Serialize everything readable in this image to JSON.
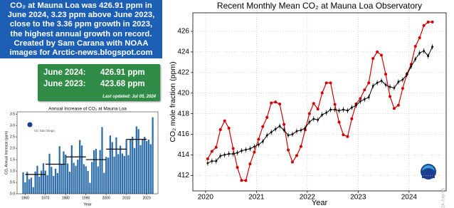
{
  "intro": {
    "lines": [
      "CO₂ at Mauna Loa was 426.91 ppm in",
      "June 2024, 3.23 ppm above June 2023,",
      "close to the 3.36 ppm growth in 2023,",
      "the highest annual growth on record.",
      "Created by Sam Carana with NOAA",
      "images for Arctic-news.blogspot.com"
    ]
  },
  "summary": {
    "rows": [
      {
        "label": "June 2024:",
        "value": "426.91 ppm"
      },
      {
        "label": "June 2023:",
        "value": "423.68 ppm"
      }
    ],
    "updated": "Last updated: Jul 05, 2024"
  },
  "chart_data": [
    {
      "type": "bar",
      "title": "Annual Increase of CO₂ at Mauna Loa",
      "x_label": "Year",
      "y_label": "CO₂ Annual Increase (ppm)",
      "credit": "UC San Diego",
      "color": "#2f6ea8",
      "x": [
        1959,
        1960,
        1961,
        1962,
        1963,
        1964,
        1965,
        1966,
        1967,
        1968,
        1969,
        1970,
        1971,
        1972,
        1973,
        1974,
        1975,
        1976,
        1977,
        1978,
        1979,
        1980,
        1981,
        1982,
        1983,
        1984,
        1985,
        1986,
        1987,
        1988,
        1989,
        1990,
        1991,
        1992,
        1993,
        1994,
        1995,
        1996,
        1997,
        1998,
        1999,
        2000,
        2001,
        2002,
        2003,
        2004,
        2005,
        2006,
        2007,
        2008,
        2009,
        2010,
        2011,
        2012,
        2013,
        2014,
        2015,
        2016,
        2017,
        2018,
        2019,
        2020,
        2021,
        2022,
        2023
      ],
      "values": [
        0.94,
        0.5,
        0.96,
        0.64,
        0.71,
        0.29,
        0.98,
        1.23,
        0.75,
        1.02,
        1.34,
        1.02,
        0.82,
        1.76,
        1.18,
        0.78,
        1.1,
        0.91,
        2.09,
        1.3,
        1.86,
        1.72,
        1.33,
        0.97,
        2.13,
        1.36,
        1.23,
        1.5,
        2.36,
        2.12,
        1.3,
        1.21,
        1.0,
        0.48,
        1.4,
        1.91,
        1.97,
        1.2,
        1.92,
        2.93,
        0.92,
        1.62,
        1.59,
        2.56,
        2.27,
        1.63,
        2.48,
        1.74,
        2.11,
        1.77,
        1.66,
        2.39,
        1.7,
        2.4,
        2.51,
        2.01,
        2.96,
        2.84,
        2.14,
        2.39,
        2.5,
        2.31,
        2.38,
        2.18,
        3.36
      ],
      "decade_means": {
        "starts": [
          1960,
          1970,
          1980,
          1990,
          2000,
          2010
        ],
        "ends": [
          1970,
          1980,
          1990,
          2000,
          2010,
          2020
        ],
        "values": [
          0.85,
          1.3,
          1.62,
          1.5,
          1.96,
          2.39
        ]
      },
      "xlim": [
        1956,
        2025.6
      ],
      "ylim": [
        0,
        3.6
      ],
      "xticks": [
        1960,
        1970,
        1980,
        1990,
        2000,
        2010,
        2020
      ],
      "yticks": [
        {
          "value": 0,
          "label": "0.0"
        },
        {
          "value": 0.5,
          "label": "0.5"
        },
        {
          "value": 1,
          "label": "1.0"
        },
        {
          "value": 1.5,
          "label": "1.5"
        },
        {
          "value": 2,
          "label": "2.0"
        },
        {
          "value": 2.5,
          "label": "2.5"
        },
        {
          "value": 3,
          "label": "3.0"
        },
        {
          "value": 3.5,
          "label": "3.5"
        }
      ]
    },
    {
      "type": "line",
      "title": "Recent Monthly Mean CO₂ at Mauna Loa Observatory",
      "x_label": "Year",
      "y_label": "CO₂ mole fraction (ppm)",
      "annotation": "2024-July-05",
      "grid": true,
      "x": [
        2020.042,
        2020.125,
        2020.208,
        2020.292,
        2020.375,
        2020.458,
        2020.542,
        2020.625,
        2020.708,
        2020.792,
        2020.875,
        2020.958,
        2021.042,
        2021.125,
        2021.208,
        2021.292,
        2021.375,
        2021.458,
        2021.542,
        2021.625,
        2021.708,
        2021.792,
        2021.875,
        2021.958,
        2022.042,
        2022.125,
        2022.208,
        2022.292,
        2022.375,
        2022.458,
        2022.542,
        2022.625,
        2022.708,
        2022.792,
        2022.875,
        2022.958,
        2023.042,
        2023.125,
        2023.208,
        2023.292,
        2023.375,
        2023.458,
        2023.542,
        2023.625,
        2023.708,
        2023.792,
        2023.875,
        2023.958,
        2024.042,
        2024.125,
        2024.208,
        2024.292,
        2024.375,
        2024.458
      ],
      "series": [
        {
          "color": "#d40000",
          "values": [
            413.61,
            414.34,
            414.74,
            416.45,
            417.31,
            416.6,
            414.62,
            412.78,
            411.52,
            411.51,
            413.12,
            414.26,
            415.52,
            416.75,
            417.64,
            419.05,
            419.13,
            418.94,
            416.96,
            414.47,
            413.3,
            413.93,
            414.82,
            416.43,
            418.01,
            418.99,
            418.45,
            420.02,
            420.99,
            420.99,
            418.9,
            417.19,
            415.95,
            415.78,
            417.51,
            418.95,
            419.47,
            420.31,
            420.99,
            423.36,
            424.0,
            423.68,
            421.83,
            419.68,
            418.51,
            418.82,
            420.46,
            421.86,
            422.8,
            424.55,
            425.38,
            426.57,
            426.9,
            426.91
          ]
        },
        {
          "color": "#000000",
          "error": 0.25,
          "values": [
            413.2,
            413.4,
            413.4,
            413.9,
            414.0,
            414.1,
            414.1,
            414.2,
            414.4,
            414.5,
            414.6,
            414.8,
            415.0,
            415.3,
            415.9,
            416.2,
            416.5,
            416.8,
            416.4,
            415.9,
            416.0,
            416.3,
            416.4,
            416.6,
            417.2,
            417.5,
            417.4,
            417.9,
            418.1,
            418.4,
            418.4,
            418.3,
            418.4,
            418.3,
            418.6,
            418.8,
            419.2,
            419.4,
            419.6,
            420.7,
            421.0,
            421.2,
            420.8,
            420.6,
            420.5,
            421.1,
            421.3,
            421.8,
            422.6,
            423.3,
            423.9,
            424.1,
            423.6,
            424.5
          ]
        }
      ],
      "xlim": [
        2019.75,
        2024.73
      ],
      "ylim": [
        410.5,
        427.8
      ],
      "xticks": [
        2020,
        2021,
        2022,
        2023,
        2024
      ],
      "yticks": [
        412,
        414,
        416,
        418,
        420,
        422,
        424,
        426
      ]
    }
  ]
}
